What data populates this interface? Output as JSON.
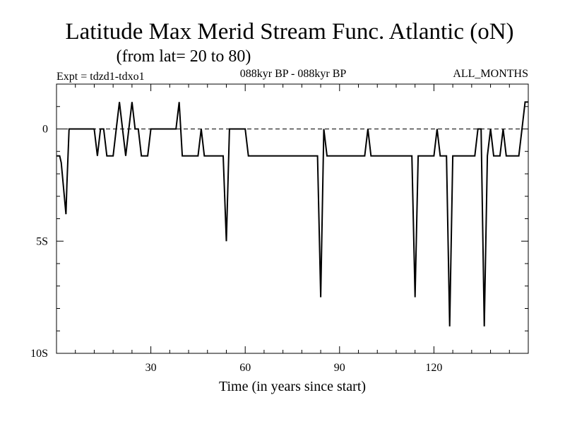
{
  "chart_data": {
    "type": "line",
    "title": "Latitude Max Merid Stream Func. Atlantic (oN)",
    "subtitle": "(from lat= 20 to 80)",
    "experiment": "Expt = tdzd1-tdxo1",
    "period": "088kyr BP - 088kyr BP",
    "months": "ALL_MONTHS",
    "xlabel": "Time (in years since start)",
    "ylabel": "",
    "xlim": [
      0,
      150
    ],
    "ylim": [
      -10,
      2
    ],
    "x_ticks": [
      30,
      60,
      90,
      120
    ],
    "y_ticks": [
      {
        "value": 0,
        "label": "0"
      },
      {
        "value": -5,
        "label": "5S"
      },
      {
        "value": -10,
        "label": "10S"
      }
    ],
    "reference_line": {
      "y": 0,
      "style": "dashed"
    },
    "series": [
      {
        "name": "Max Merid Stream Func",
        "x": [
          0,
          1,
          1.5,
          3,
          3.3,
          4,
          5,
          8,
          9,
          10,
          11,
          12,
          13,
          14,
          15,
          16,
          17,
          18,
          19,
          20,
          21,
          22,
          23,
          24,
          25,
          26,
          27,
          28,
          29,
          30,
          31,
          32,
          33,
          34,
          35,
          36,
          37,
          38,
          39,
          40,
          41,
          42,
          43,
          44,
          45,
          46,
          47,
          48,
          49,
          50,
          51,
          52,
          53,
          54,
          55,
          56,
          57,
          58,
          59,
          60,
          61,
          62,
          63,
          64,
          65,
          66,
          67,
          68,
          69,
          70,
          71,
          72,
          73,
          74,
          75,
          76,
          77,
          78,
          79,
          80,
          81,
          82,
          83,
          84,
          85,
          86,
          87,
          88,
          89,
          90,
          91,
          92,
          93,
          94,
          95,
          96,
          97,
          98,
          99,
          100,
          101,
          102,
          103,
          104,
          105,
          106,
          107,
          108,
          109,
          110,
          111,
          112,
          113,
          114,
          115,
          116,
          117,
          118,
          119,
          120,
          121,
          122,
          123,
          124,
          125,
          126,
          127,
          128,
          129,
          130,
          131,
          132,
          133,
          134,
          135,
          136,
          137,
          138,
          139,
          140,
          141,
          142,
          143,
          144,
          145,
          146,
          147,
          148,
          149,
          150
        ],
        "y": [
          -1.2,
          -1.2,
          -1.5,
          -3.8,
          -2.5,
          0,
          0,
          0,
          0,
          0,
          0,
          0,
          -1.2,
          0,
          0,
          -1.2,
          -1.2,
          -1.2,
          0,
          1.2,
          0,
          -1.2,
          0,
          1.2,
          0,
          0,
          -1.2,
          -1.2,
          -1.2,
          0,
          0,
          0,
          0,
          0,
          0,
          0,
          0,
          0,
          1.2,
          -1.2,
          -1.2,
          -1.2,
          -1.2,
          -1.2,
          -1.2,
          0,
          -1.2,
          -1.2,
          -1.2,
          -1.2,
          -1.2,
          -1.2,
          -1.2,
          -5,
          0,
          0,
          0,
          0,
          0,
          0,
          -1.2,
          -1.2,
          -1.2,
          -1.2,
          -1.2,
          -1.2,
          -1.2,
          -1.2,
          -1.2,
          -1.2,
          -1.2,
          -1.2,
          -1.2,
          -1.2,
          -1.2,
          -1.2,
          -1.2,
          -1.2,
          -1.2,
          -1.2,
          -1.2,
          -1.2,
          -1.2,
          -7.5,
          0,
          -1.2,
          -1.2,
          -1.2,
          -1.2,
          -1.2,
          -1.2,
          -1.2,
          -1.2,
          -1.2,
          -1.2,
          -1.2,
          -1.2,
          -1.2,
          0,
          -1.2,
          -1.2,
          -1.2,
          -1.2,
          -1.2,
          -1.2,
          -1.2,
          -1.2,
          -1.2,
          -1.2,
          -1.2,
          -1.2,
          -1.2,
          -1.2,
          -7.5,
          -1.2,
          -1.2,
          -1.2,
          -1.2,
          -1.2,
          -1.2,
          0,
          -1.2,
          -1.2,
          -1.2,
          -8.8,
          -1.2,
          -1.2,
          -1.2,
          -1.2,
          -1.2,
          -1.2,
          -1.2,
          -1.2,
          0,
          0,
          -8.8,
          -1.2,
          0,
          -1.2,
          -1.2,
          -1.2,
          0,
          -1.2,
          -1.2,
          -1.2,
          -1.2,
          -1.2,
          0,
          1.2,
          1.2
        ]
      }
    ]
  }
}
